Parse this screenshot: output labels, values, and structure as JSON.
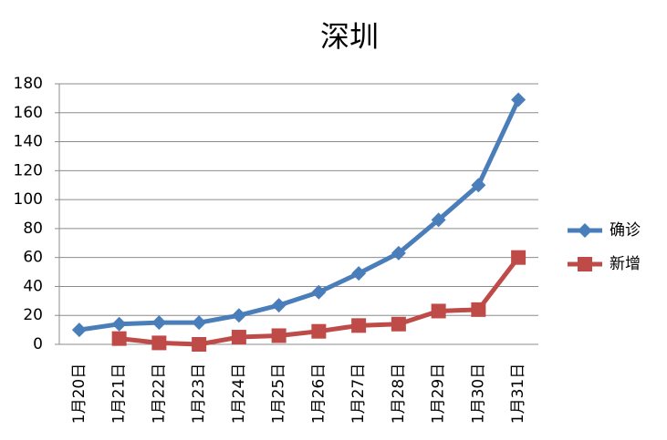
{
  "chart_data": {
    "type": "line",
    "title": "深圳",
    "categories": [
      "1月20日",
      "1月21日",
      "1月22日",
      "1月23日",
      "1月24日",
      "1月25日",
      "1月26日",
      "1月27日",
      "1月28日",
      "1月29日",
      "1月30日",
      "1月31日"
    ],
    "series": [
      {
        "name": "确诊",
        "color": "#4a7ebb",
        "marker": "diamond",
        "values": [
          10,
          14,
          15,
          15,
          20,
          27,
          36,
          49,
          63,
          86,
          110,
          169
        ]
      },
      {
        "name": "新增",
        "color": "#be4b48",
        "marker": "square",
        "values": [
          null,
          4,
          1,
          0,
          5,
          6,
          9,
          13,
          14,
          23,
          24,
          60
        ]
      }
    ],
    "ylim": [
      0,
      180
    ],
    "yticks": [
      0,
      20,
      40,
      60,
      80,
      100,
      120,
      140,
      160,
      180
    ],
    "grid": true,
    "legend": "right"
  }
}
